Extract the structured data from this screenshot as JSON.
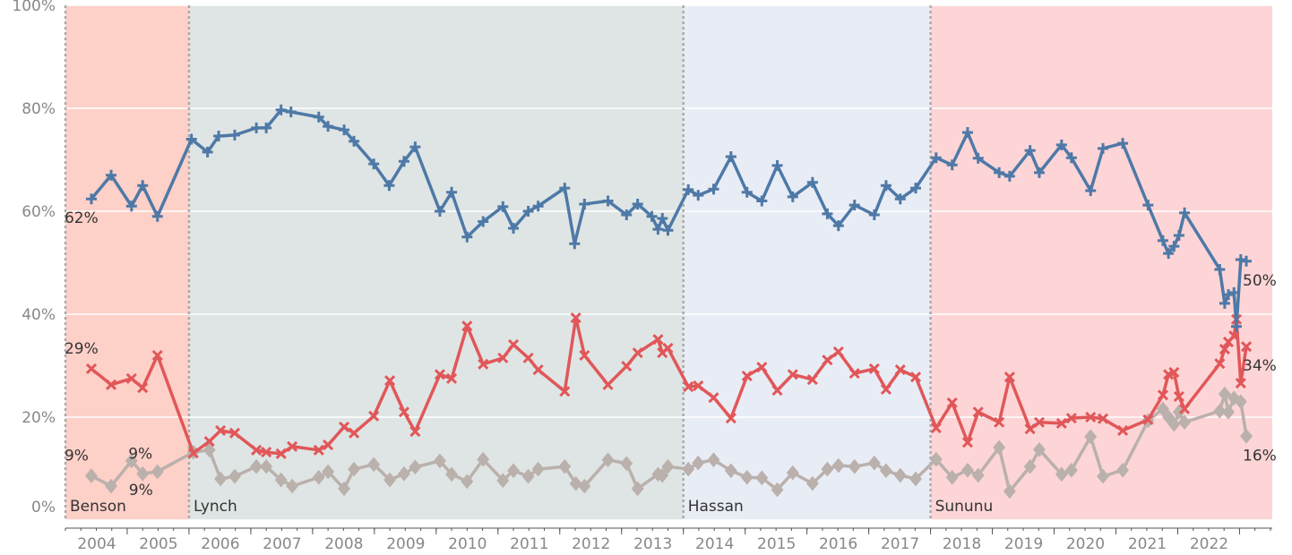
{
  "chart_data": {
    "type": "line",
    "xlim": [
      2003,
      2022.53
    ],
    "xticks": [
      2004,
      2005,
      2006,
      2007,
      2008,
      2009,
      2010,
      2011,
      2012,
      2013,
      2014,
      2015,
      2016,
      2017,
      2018,
      2019,
      2020,
      2021,
      2022
    ],
    "ylim": [
      0,
      100
    ],
    "yticks": [
      {
        "value": 0,
        "label": "0%"
      },
      {
        "value": 20,
        "label": "20%"
      },
      {
        "value": 40,
        "label": "40%"
      },
      {
        "value": 60,
        "label": "60%"
      },
      {
        "value": 80,
        "label": "80%"
      },
      {
        "value": 100,
        "label": "100%"
      }
    ],
    "grid": true,
    "periods": [
      {
        "label": "Benson",
        "start": 2003,
        "color": "#fdd0c8"
      },
      {
        "label": "Lynch",
        "start": 2005,
        "color": "#dfe5e4"
      },
      {
        "label": "Hassan",
        "start": 2013,
        "color": "#e8ecf5"
      },
      {
        "label": "Sununu",
        "start": 2017,
        "color": "#fdd5d6"
      }
    ],
    "series": [
      {
        "color": "#4e79a7",
        "marker": "plus",
        "x": [
          2003.42,
          2003.74,
          2004.07,
          2004.25,
          2004.49,
          2005.04,
          2005.3,
          2005.48,
          2005.74,
          2006.09,
          2006.25,
          2006.49,
          2006.65,
          2007.1,
          2007.25,
          2007.51,
          2007.67,
          2007.99,
          2008.24,
          2008.48,
          2008.66,
          2009.06,
          2009.25,
          2009.5,
          2009.76,
          2010.08,
          2010.25,
          2010.49,
          2010.65,
          2011.08,
          2011.24,
          2011.4,
          2011.78,
          2012.08,
          2012.26,
          2012.49,
          2012.59,
          2012.66,
          2012.75,
          2013.08,
          2013.24,
          2013.49,
          2013.77,
          2014.03,
          2014.27,
          2014.52,
          2014.77,
          2015.09,
          2015.33,
          2015.51,
          2015.77,
          2016.09,
          2016.28,
          2016.51,
          2016.76,
          2017.09,
          2017.35,
          2017.6,
          2017.77,
          2018.11,
          2018.28,
          2018.61,
          2018.76,
          2019.12,
          2019.28,
          2019.59,
          2019.79,
          2020.11,
          2020.52,
          2020.76,
          2020.85,
          2020.94,
          2021.02,
          2021.11,
          2021.68,
          2021.76,
          2021.82,
          2021.91,
          2021.95,
          2022.02,
          2022.11
        ],
        "values": [
          62.4,
          67,
          61,
          65,
          59,
          74,
          71.5,
          74.6,
          74.8,
          76.2,
          76.2,
          79.7,
          79.3,
          78.3,
          76.5,
          75.8,
          73.6,
          69.2,
          65,
          69.7,
          72.5,
          60,
          63.7,
          55,
          58,
          60.9,
          56.7,
          60,
          61,
          64.5,
          53.7,
          61.4,
          62,
          59.3,
          61.4,
          59,
          56.5,
          58.6,
          56.3,
          64.2,
          63.1,
          64.3,
          70.6,
          63.7,
          62,
          68.9,
          62.8,
          65.6,
          59.5,
          57.2,
          61.2,
          59.3,
          65,
          62.4,
          64.5,
          70.4,
          69,
          75.3,
          70.3,
          67.5,
          66.8,
          71.8,
          67.5,
          72.9,
          70.4,
          64,
          72.2,
          73.2,
          61.2,
          54.3,
          51.8,
          53.2,
          55.3,
          59.7,
          48.7,
          42.1,
          43.8,
          44.2,
          37.6,
          50.6,
          50.3
        ],
        "value_labels": [
          "62%",
          null,
          null,
          null,
          null,
          null,
          null,
          null,
          null,
          null,
          null,
          null,
          null,
          null,
          null,
          null,
          null,
          null,
          null,
          null,
          null,
          null,
          null,
          null,
          null,
          null,
          null,
          null,
          null,
          null,
          null,
          null,
          null,
          null,
          null,
          null,
          null,
          null,
          null,
          null,
          null,
          null,
          null,
          null,
          null,
          null,
          null,
          null,
          null,
          null,
          null,
          null,
          null,
          null,
          null,
          null,
          null,
          null,
          null,
          null,
          null,
          null,
          null,
          null,
          null,
          null,
          null,
          null,
          null,
          null,
          null,
          null,
          null,
          null,
          null,
          null,
          null,
          null,
          null,
          null,
          "50%"
        ]
      },
      {
        "color": "#e15759",
        "marker": "cross",
        "x": [
          2003.42,
          2003.74,
          2004.07,
          2004.25,
          2004.49,
          2005.07,
          2005.33,
          2005.51,
          2005.74,
          2006.09,
          2006.25,
          2006.49,
          2006.67,
          2007.1,
          2007.25,
          2007.51,
          2007.67,
          2007.99,
          2008.25,
          2008.48,
          2008.66,
          2009.06,
          2009.25,
          2009.5,
          2009.76,
          2010.08,
          2010.25,
          2010.49,
          2010.65,
          2011.08,
          2011.26,
          2011.4,
          2011.78,
          2012.08,
          2012.26,
          2012.59,
          2012.66,
          2012.75,
          2013.08,
          2013.24,
          2013.49,
          2013.77,
          2014.03,
          2014.27,
          2014.52,
          2014.77,
          2015.09,
          2015.33,
          2015.51,
          2015.77,
          2016.09,
          2016.28,
          2016.51,
          2016.76,
          2017.09,
          2017.35,
          2017.6,
          2017.77,
          2018.11,
          2018.28,
          2018.61,
          2018.76,
          2019.12,
          2019.28,
          2019.59,
          2019.79,
          2020.11,
          2020.52,
          2020.76,
          2020.85,
          2020.94,
          2021.02,
          2021.11,
          2021.68,
          2021.76,
          2021.82,
          2021.91,
          2021.95,
          2022.02,
          2022.11
        ],
        "values": [
          29.4,
          26.3,
          27.5,
          25.7,
          32,
          13,
          15.3,
          17.4,
          16.9,
          13.6,
          13.2,
          12.9,
          14.3,
          13.6,
          14.6,
          18.1,
          16.9,
          20.2,
          27.1,
          21,
          17.2,
          28.3,
          27.5,
          37.7,
          30.3,
          31.5,
          34.1,
          31.5,
          29.2,
          25,
          39.3,
          32,
          26.3,
          29.9,
          32.5,
          35.1,
          32.5,
          33.4,
          25.9,
          26.1,
          23.8,
          19.8,
          28,
          29.7,
          25.2,
          28.3,
          27.3,
          31.1,
          32.7,
          28.5,
          29.4,
          25.4,
          29.2,
          27.8,
          17.9,
          22.8,
          15.1,
          21,
          19,
          27.8,
          17.7,
          19,
          18.8,
          19.8,
          20,
          19.7,
          17.4,
          19.5,
          24.3,
          28.3,
          28.7,
          24,
          21.6,
          30.4,
          33.2,
          34.6,
          35.8,
          39,
          26.6,
          33.7
        ],
        "value_labels": [
          "29%",
          null,
          null,
          null,
          null,
          null,
          null,
          null,
          null,
          null,
          null,
          null,
          null,
          null,
          null,
          null,
          null,
          null,
          null,
          null,
          null,
          null,
          null,
          null,
          null,
          null,
          null,
          null,
          null,
          null,
          null,
          null,
          null,
          null,
          null,
          null,
          null,
          null,
          null,
          null,
          null,
          null,
          null,
          null,
          null,
          null,
          null,
          null,
          null,
          null,
          null,
          null,
          null,
          null,
          null,
          null,
          null,
          null,
          null,
          null,
          null,
          null,
          null,
          null,
          null,
          null,
          null,
          null,
          null,
          null,
          null,
          null,
          null,
          null,
          null,
          null,
          null,
          null,
          null,
          "34%"
        ]
      },
      {
        "color": "#bab0ac",
        "marker": "diamond",
        "x": [
          2003.42,
          2003.74,
          2004.07,
          2004.25,
          2004.49,
          2005.07,
          2005.33,
          2005.51,
          2005.74,
          2006.09,
          2006.25,
          2006.49,
          2006.67,
          2007.1,
          2007.25,
          2007.51,
          2007.67,
          2007.99,
          2008.25,
          2008.48,
          2008.66,
          2009.06,
          2009.25,
          2009.5,
          2009.76,
          2010.08,
          2010.25,
          2010.49,
          2010.65,
          2011.08,
          2011.26,
          2011.4,
          2011.78,
          2012.08,
          2012.26,
          2012.59,
          2012.66,
          2012.75,
          2013.08,
          2013.24,
          2013.49,
          2013.77,
          2014.03,
          2014.27,
          2014.52,
          2014.77,
          2015.09,
          2015.33,
          2015.51,
          2015.77,
          2016.09,
          2016.28,
          2016.51,
          2016.76,
          2017.09,
          2017.35,
          2017.6,
          2017.77,
          2018.11,
          2018.28,
          2018.61,
          2018.76,
          2019.12,
          2019.28,
          2019.59,
          2019.79,
          2020.11,
          2020.52,
          2020.76,
          2020.85,
          2020.94,
          2021.02,
          2021.11,
          2021.68,
          2021.76,
          2021.82,
          2021.91,
          2022.02,
          2022.11
        ],
        "values": [
          8.6,
          6.6,
          11.5,
          9,
          9.4,
          13.2,
          13.6,
          8,
          8.5,
          10.4,
          10.4,
          7.8,
          6.6,
          8.3,
          9.4,
          6.1,
          9.9,
          10.8,
          7.8,
          9,
          10.3,
          11.5,
          8.9,
          7.5,
          11.8,
          7.7,
          9.6,
          8.5,
          9.9,
          10.4,
          7.1,
          6.6,
          11.7,
          11,
          6.1,
          8.9,
          8.7,
          10.4,
          9.9,
          11.1,
          11.7,
          9.6,
          8.3,
          8.2,
          5.9,
          9.2,
          7.1,
          9.9,
          10.6,
          10.4,
          11.1,
          9.6,
          8.7,
          8,
          11.8,
          8.3,
          9.7,
          8.7,
          14.1,
          5.6,
          10.4,
          13.7,
          8.9,
          9.7,
          16.2,
          8.5,
          9.7,
          19.3,
          21.6,
          20,
          18.6,
          21,
          19,
          21.2,
          24.5,
          21,
          23.7,
          23,
          16.3
        ],
        "value_labels": [
          "9%",
          null,
          null,
          "9%",
          "9%",
          null,
          null,
          null,
          null,
          null,
          null,
          null,
          null,
          null,
          null,
          null,
          null,
          null,
          null,
          null,
          null,
          null,
          null,
          null,
          null,
          null,
          null,
          null,
          null,
          null,
          null,
          null,
          null,
          null,
          null,
          null,
          null,
          null,
          null,
          null,
          null,
          null,
          null,
          null,
          null,
          null,
          null,
          null,
          null,
          null,
          null,
          null,
          null,
          null,
          null,
          null,
          null,
          null,
          null,
          null,
          null,
          null,
          null,
          null,
          null,
          null,
          null,
          null,
          null,
          null,
          null,
          null,
          null,
          null,
          null,
          null,
          null,
          null,
          "16%"
        ]
      }
    ]
  }
}
